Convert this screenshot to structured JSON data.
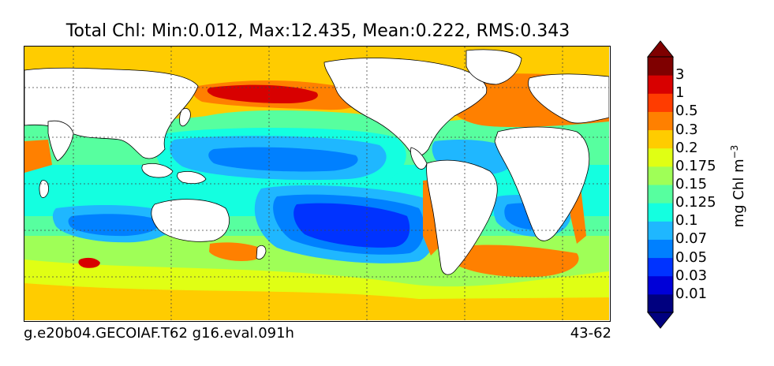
{
  "title": "Total Chl: Min:0.012, Max:12.435, Mean:0.222, RMS:0.343",
  "footer": {
    "run_id": "g.e20b04.GECOIAF.T62 g16.eval.091h",
    "years": "43-62"
  },
  "colorbar": {
    "unit_base": "mg Chl m",
    "unit_exp": "−3",
    "levels": [
      "0.01",
      "0.03",
      "0.05",
      "0.07",
      "0.1",
      "0.125",
      "0.15",
      "0.175",
      "0.2",
      "0.3",
      "0.5",
      "1",
      "3"
    ],
    "colors": [
      "#00007f",
      "#0000d8",
      "#0033ff",
      "#0080ff",
      "#1fb7ff",
      "#14ffe0",
      "#57ff9f",
      "#9fff57",
      "#e0ff14",
      "#ffcc00",
      "#ff8000",
      "#ff3c00",
      "#d80000",
      "#7f0000"
    ]
  },
  "colors": {
    "land": "#ffffff",
    "ocean_base": "#57ff9f"
  }
}
